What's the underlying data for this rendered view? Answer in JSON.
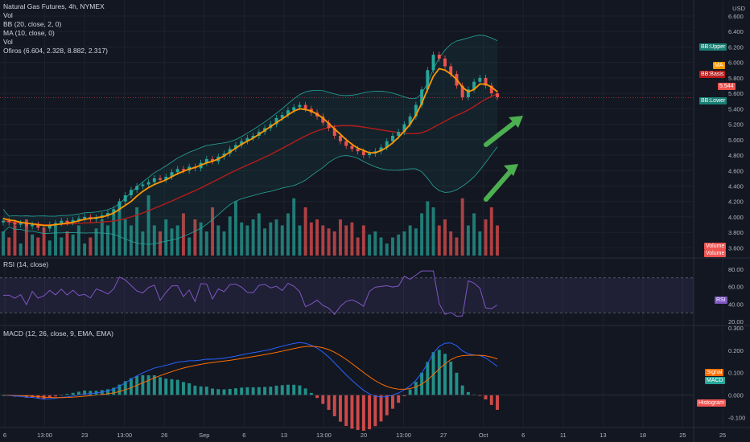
{
  "main_panel": {
    "legend": {
      "symbol": "Natural Gas Futures, 4h, NYMEX",
      "vol": "Vol",
      "bb": "BB (20, close, 2, 0)",
      "ma": "MA (10, close, 0)",
      "vol2": "Vol",
      "ofiros": "Ofiros (6.604, 2.328, 8.882, 2.317)"
    },
    "currency": "USD",
    "price_ticks": [
      "6.600",
      "6.400",
      "6.200",
      "6.000",
      "5.800",
      "5.600",
      "5.400",
      "5.200",
      "5.000",
      "4.800",
      "4.600",
      "4.400",
      "4.200",
      "4.000",
      "3.800",
      "3.600"
    ],
    "tags": {
      "bb_upper": "BB:Upper",
      "ma": "MA",
      "bb_basis": "BB:Basis",
      "last_price": "5.544",
      "bb_lower": "BB:Lower",
      "volume_1": "Volume",
      "volume_2": "Volume"
    }
  },
  "rsi_panel": {
    "legend": "RSI (14, close)",
    "ticks": [
      "80.00",
      "60.00",
      "40.00",
      "20.00"
    ],
    "tag": "RSI"
  },
  "macd_panel": {
    "legend": "MACD (12, 26, close, 9, EMA, EMA)",
    "ticks": [
      "0.300",
      "0.200",
      "0.100",
      "0.000",
      "-0.100"
    ],
    "tags": {
      "signal": "Signal",
      "macd": "MACD",
      "histogram": "Histogram"
    }
  },
  "time_axis": [
    "6",
    "13:00",
    "23",
    "13:00",
    "26",
    "Sep",
    "6",
    "13",
    "13:00",
    "20",
    "13:00",
    "27",
    "Oct",
    "6",
    "11",
    "13",
    "18",
    "25",
    "25"
  ],
  "colors": {
    "background": "#131722",
    "up": "#26a69a",
    "down": "#ef5350",
    "ma_line": "#ff9800",
    "bb_basis": "#b71c1c",
    "bb_band": "#26a69a",
    "rsi_line": "#7e57c2",
    "macd_line": "#2962ff",
    "signal_line": "#ff6d00",
    "arrow": "#4caf50"
  },
  "chart_data": {
    "type": "candlestick",
    "symbol": "Natural Gas Futures",
    "interval": "4h",
    "exchange": "NYMEX",
    "last_price": 5.544,
    "price_range": [
      3.5,
      6.6
    ],
    "close_series": [
      3.95,
      3.93,
      3.9,
      3.92,
      3.88,
      3.9,
      3.86,
      3.85,
      3.9,
      3.92,
      3.95,
      3.93,
      3.96,
      3.98,
      4.0,
      3.97,
      3.99,
      4.02,
      4.05,
      4.1,
      4.2,
      4.28,
      4.35,
      4.4,
      4.42,
      4.45,
      4.5,
      4.48,
      4.52,
      4.58,
      4.62,
      4.6,
      4.65,
      4.63,
      4.7,
      4.75,
      4.72,
      4.78,
      4.82,
      4.88,
      4.93,
      4.98,
      5.02,
      5.05,
      5.1,
      5.15,
      5.2,
      5.28,
      5.32,
      5.38,
      5.42,
      5.45,
      5.4,
      5.35,
      5.3,
      5.22,
      5.15,
      5.05,
      4.98,
      4.92,
      4.88,
      4.85,
      4.8,
      4.82,
      4.85,
      4.9,
      4.98,
      5.05,
      5.1,
      5.2,
      5.3,
      5.45,
      5.65,
      5.9,
      6.1,
      6.05,
      5.95,
      5.85,
      5.7,
      5.55,
      5.65,
      5.75,
      5.8,
      5.7,
      5.6,
      5.55
    ],
    "ma10_series": [
      3.98,
      3.96,
      3.95,
      3.93,
      3.92,
      3.91,
      3.9,
      3.89,
      3.89,
      3.9,
      3.91,
      3.92,
      3.93,
      3.95,
      3.97,
      3.98,
      3.99,
      4.0,
      4.02,
      4.05,
      4.1,
      4.15,
      4.2,
      4.27,
      4.33,
      4.38,
      4.42,
      4.45,
      4.48,
      4.52,
      4.56,
      4.59,
      4.62,
      4.64,
      4.67,
      4.7,
      4.72,
      4.75,
      4.79,
      4.84,
      4.89,
      4.94,
      4.98,
      5.02,
      5.07,
      5.12,
      5.17,
      5.22,
      5.27,
      5.32,
      5.37,
      5.4,
      5.39,
      5.37,
      5.33,
      5.28,
      5.21,
      5.14,
      5.07,
      5.0,
      4.94,
      4.89,
      4.86,
      4.83,
      4.83,
      4.86,
      4.9,
      4.96,
      5.03,
      5.11,
      5.2,
      5.32,
      5.47,
      5.65,
      5.82,
      5.92,
      5.9,
      5.85,
      5.78,
      5.68,
      5.62,
      5.65,
      5.72,
      5.72,
      5.68,
      5.62
    ],
    "volume_series": [
      0.4,
      0.3,
      0.5,
      0.2,
      0.6,
      0.35,
      0.3,
      0.45,
      0.25,
      0.5,
      0.3,
      0.4,
      0.35,
      0.5,
      0.2,
      0.3,
      0.45,
      0.6,
      0.5,
      0.7,
      0.9,
      0.6,
      0.5,
      0.8,
      0.4,
      1.0,
      0.5,
      0.4,
      0.6,
      0.45,
      0.5,
      0.7,
      0.3,
      0.6,
      0.55,
      0.4,
      0.8,
      0.5,
      0.4,
      0.65,
      0.9,
      0.55,
      0.5,
      0.6,
      0.7,
      0.45,
      0.55,
      0.6,
      0.5,
      0.7,
      0.95,
      0.5,
      0.8,
      0.55,
      0.6,
      0.5,
      0.45,
      0.4,
      0.6,
      0.5,
      0.55,
      0.3,
      0.5,
      0.35,
      0.4,
      0.3,
      0.2,
      0.3,
      0.35,
      0.4,
      0.5,
      0.45,
      0.7,
      0.9,
      0.8,
      0.5,
      0.6,
      0.4,
      0.3,
      0.95,
      0.5,
      0.7,
      0.4,
      0.6,
      0.8,
      0.5
    ],
    "rsi": {
      "range": [
        20,
        80
      ],
      "levels": [
        70,
        30
      ]
    },
    "macd": {
      "range": [
        -0.12,
        0.3
      ]
    }
  }
}
